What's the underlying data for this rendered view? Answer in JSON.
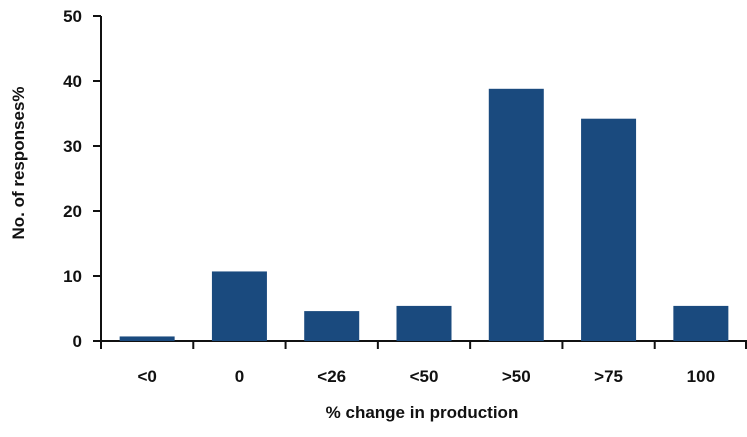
{
  "chart_data": {
    "type": "bar",
    "categories": [
      "<0",
      "0",
      "<26",
      "<50",
      ">50",
      ">75",
      "100"
    ],
    "values": [
      0.7,
      10.7,
      4.6,
      5.4,
      38.8,
      34.2,
      5.4
    ],
    "title": "",
    "xlabel": "% change in production",
    "ylabel": "No. of responses%",
    "ylim": [
      0,
      50
    ],
    "yticks": [
      0,
      10,
      20,
      30,
      40,
      50
    ],
    "grid": false,
    "legend": "none",
    "bar_color": "#1a4a7e",
    "axis_color": "#111111"
  }
}
